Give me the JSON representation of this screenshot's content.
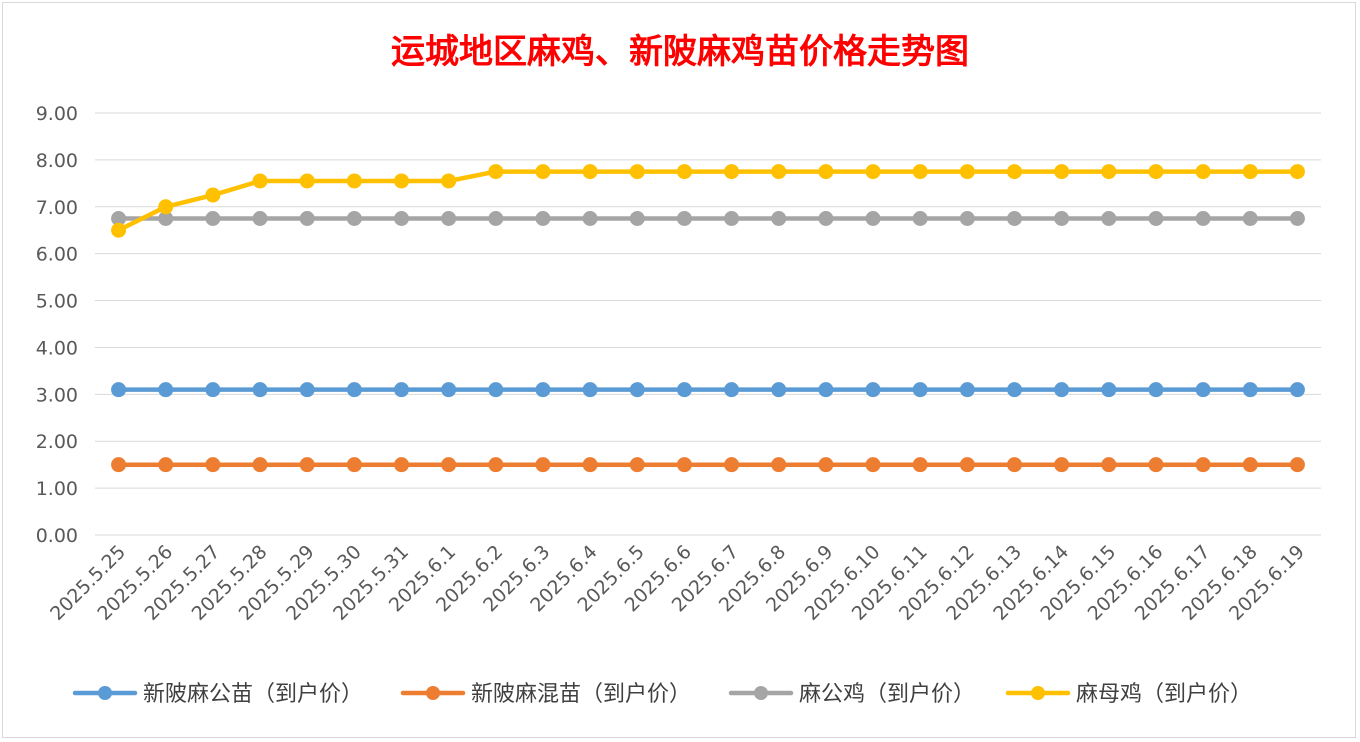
{
  "chart_data": {
    "type": "line",
    "title": "运城地区麻鸡、新陂麻鸡苗价格走势图",
    "xlabel": "",
    "ylabel": "",
    "ylim": [
      0,
      9
    ],
    "yticks": [
      "0.00",
      "1.00",
      "2.00",
      "3.00",
      "4.00",
      "5.00",
      "6.00",
      "7.00",
      "8.00",
      "9.00"
    ],
    "grid": true,
    "legend": "bottom",
    "categories": [
      "2025.5.25",
      "2025.5.26",
      "2025.5.27",
      "2025.5.28",
      "2025.5.29",
      "2025.5.30",
      "2025.5.31",
      "2025.6.1",
      "2025.6.2",
      "2025.6.3",
      "2025.6.4",
      "2025.6.5",
      "2025.6.6",
      "2025.6.7",
      "2025.6.8",
      "2025.6.9",
      "2025.6.10",
      "2025.6.11",
      "2025.6.12",
      "2025.6.13",
      "2025.6.14",
      "2025.6.15",
      "2025.6.16",
      "2025.6.17",
      "2025.6.18",
      "2025.6.19"
    ],
    "series": [
      {
        "name": "新陂麻公苗（到户价）",
        "color": "#5b9bd5",
        "values": [
          3.1,
          3.1,
          3.1,
          3.1,
          3.1,
          3.1,
          3.1,
          3.1,
          3.1,
          3.1,
          3.1,
          3.1,
          3.1,
          3.1,
          3.1,
          3.1,
          3.1,
          3.1,
          3.1,
          3.1,
          3.1,
          3.1,
          3.1,
          3.1,
          3.1,
          3.1
        ]
      },
      {
        "name": "新陂麻混苗（到户价）",
        "color": "#ed7d31",
        "values": [
          1.5,
          1.5,
          1.5,
          1.5,
          1.5,
          1.5,
          1.5,
          1.5,
          1.5,
          1.5,
          1.5,
          1.5,
          1.5,
          1.5,
          1.5,
          1.5,
          1.5,
          1.5,
          1.5,
          1.5,
          1.5,
          1.5,
          1.5,
          1.5,
          1.5,
          1.5
        ]
      },
      {
        "name": "麻公鸡（到户价）",
        "color": "#a5a5a5",
        "values": [
          6.75,
          6.75,
          6.75,
          6.75,
          6.75,
          6.75,
          6.75,
          6.75,
          6.75,
          6.75,
          6.75,
          6.75,
          6.75,
          6.75,
          6.75,
          6.75,
          6.75,
          6.75,
          6.75,
          6.75,
          6.75,
          6.75,
          6.75,
          6.75,
          6.75,
          6.75
        ]
      },
      {
        "name": "麻母鸡（到户价）",
        "color": "#ffc000",
        "values": [
          6.5,
          7.0,
          7.25,
          7.55,
          7.55,
          7.55,
          7.55,
          7.55,
          7.75,
          7.75,
          7.75,
          7.75,
          7.75,
          7.75,
          7.75,
          7.75,
          7.75,
          7.75,
          7.75,
          7.75,
          7.75,
          7.75,
          7.75,
          7.75,
          7.75,
          7.75
        ]
      }
    ]
  }
}
